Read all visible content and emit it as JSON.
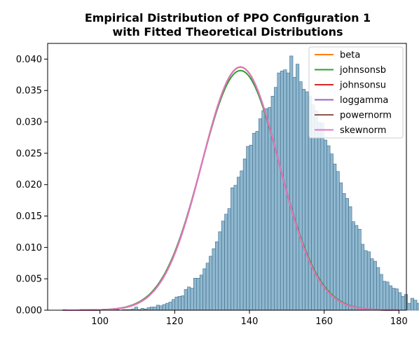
{
  "chart_data": {
    "type": "bar",
    "title": "Empirical Distribution of PPO Configuration 1",
    "subtitle": "with Fitted Theoretical Distributions",
    "xlabel": "",
    "ylabel": "",
    "xlim": [
      86,
      182
    ],
    "ylim": [
      0,
      0.0425
    ],
    "x_ticks": [
      100,
      120,
      140,
      160,
      180
    ],
    "y_ticks": [
      0.0,
      0.005,
      0.01,
      0.015,
      0.02,
      0.025,
      0.03,
      0.035,
      0.04
    ],
    "x_tick_labels": [
      "100",
      "120",
      "140",
      "160",
      "180"
    ],
    "y_tick_labels": [
      "0.000",
      "0.005",
      "0.010",
      "0.015",
      "0.020",
      "0.025",
      "0.030",
      "0.035",
      "0.040"
    ],
    "grid": false,
    "legend_position": "top-right",
    "histogram": {
      "bin_start": 90.2,
      "bin_width": 0.83,
      "values": [
        0.0001,
        0,
        0,
        0,
        0,
        0,
        0,
        0,
        0,
        0,
        0,
        0,
        0,
        0,
        0,
        0.0001,
        0,
        0.0001,
        0,
        0.0001,
        0.0001,
        0.0001,
        0.0002,
        0.0005,
        0.0001,
        0.0003,
        0.0002,
        0.0004,
        0.0005,
        0.0005,
        0.0008,
        0.0007,
        0.0009,
        0.0011,
        0.0013,
        0.0017,
        0.0021,
        0.0022,
        0.0023,
        0.0033,
        0.0037,
        0.0035,
        0.0051,
        0.0051,
        0.0056,
        0.0066,
        0.0075,
        0.0086,
        0.0098,
        0.0109,
        0.0125,
        0.0142,
        0.0153,
        0.0162,
        0.0195,
        0.0199,
        0.0212,
        0.0222,
        0.0241,
        0.0261,
        0.0263,
        0.0282,
        0.0285,
        0.0305,
        0.0318,
        0.0321,
        0.0323,
        0.0341,
        0.0355,
        0.0378,
        0.0381,
        0.0383,
        0.0378,
        0.0405,
        0.0371,
        0.0392,
        0.0364,
        0.0352,
        0.0348,
        0.0341,
        0.0327,
        0.0318,
        0.0299,
        0.0298,
        0.0271,
        0.0262,
        0.0249,
        0.0233,
        0.0221,
        0.0203,
        0.0186,
        0.0178,
        0.0165,
        0.0141,
        0.0135,
        0.0129,
        0.0105,
        0.0095,
        0.0093,
        0.0082,
        0.0078,
        0.0068,
        0.0057,
        0.0046,
        0.0045,
        0.0039,
        0.0035,
        0.0034,
        0.0028,
        0.0022,
        0.0025,
        0.0011,
        0.0019,
        0.0016,
        0.0011,
        0.0009,
        0.0007,
        0.0008,
        0.0004,
        0.0004,
        0.0003,
        0.0002,
        0.0002,
        0.0009,
        0.0002,
        0.0001
      ],
      "color": "#8fb8d0",
      "edge_color": "#3d6985"
    },
    "series": [
      {
        "name": "beta",
        "color": "#ff7f0e",
        "mean": 137.6,
        "sd": 10.3,
        "skew": 0.0
      },
      {
        "name": "johnsonsb",
        "color": "#2ca02c",
        "mean": 137.6,
        "sd": 10.45,
        "skew": 0.0
      },
      {
        "name": "johnsonsu",
        "color": "#d62728",
        "mean": 137.6,
        "sd": 10.3,
        "skew": 0.0
      },
      {
        "name": "loggamma",
        "color": "#9467bd",
        "mean": 137.6,
        "sd": 10.3,
        "skew": 0.0
      },
      {
        "name": "powernorm",
        "color": "#8c564b",
        "mean": 137.6,
        "sd": 10.3,
        "skew": 0.0
      },
      {
        "name": "skewnorm",
        "color": "#e377c2",
        "mean": 137.6,
        "sd": 10.3,
        "skew": 0.0
      }
    ]
  }
}
